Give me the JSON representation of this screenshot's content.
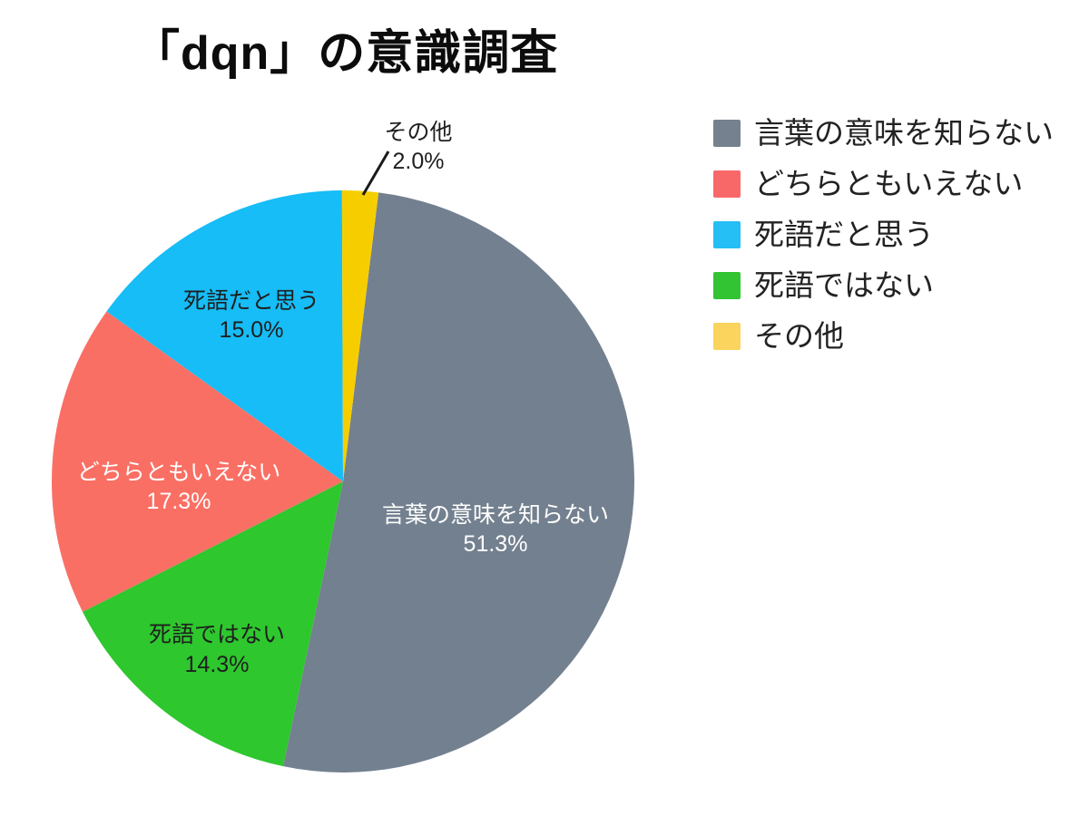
{
  "page": {
    "background_color": "#ffffff"
  },
  "chart_data": {
    "type": "pie",
    "title": "「dqn」の意識調査",
    "direction": "clockwise",
    "start_angle_offset_deg": 7,
    "legend_position": "right",
    "grid": "off",
    "categories": [
      "言葉の意味を知らない",
      "どちらともいえない",
      "死語だと思う",
      "死語ではない",
      "その他"
    ],
    "values": [
      51.3,
      17.3,
      15.0,
      14.3,
      2.0
    ],
    "pie_clockwise_order": [
      0,
      3,
      1,
      2,
      4
    ],
    "slices": [
      {
        "label": "言葉の意味を知らない",
        "value": 51.3,
        "pct_label": "51.3%",
        "color": "#73808F",
        "legend_color": "#75818F",
        "text_color": "#ffffff",
        "label_placement": "inside"
      },
      {
        "label": "どちらともいえない",
        "value": 17.3,
        "pct_label": "17.3%",
        "color": "#FA6F64",
        "legend_color": "#F96868",
        "text_color": "#ffffff",
        "label_placement": "inside"
      },
      {
        "label": "死語だと思う",
        "value": 15.0,
        "pct_label": "15.0%",
        "color": "#16BDF6",
        "legend_color": "#25BEF5",
        "text_color": "#1f1f1f",
        "label_placement": "inside"
      },
      {
        "label": "死語ではない",
        "value": 14.3,
        "pct_label": "14.3%",
        "color": "#2EC72E",
        "legend_color": "#33C433",
        "text_color": "#1f1f1f",
        "label_placement": "inside"
      },
      {
        "label": "その他",
        "value": 2.0,
        "pct_label": "2.0%",
        "color": "#F6CE00",
        "legend_color": "#FAD45C",
        "text_color": "#1f1f1f",
        "label_placement": "outside-with-leader-line"
      }
    ],
    "leader_line_color": "#1a1a1a"
  }
}
